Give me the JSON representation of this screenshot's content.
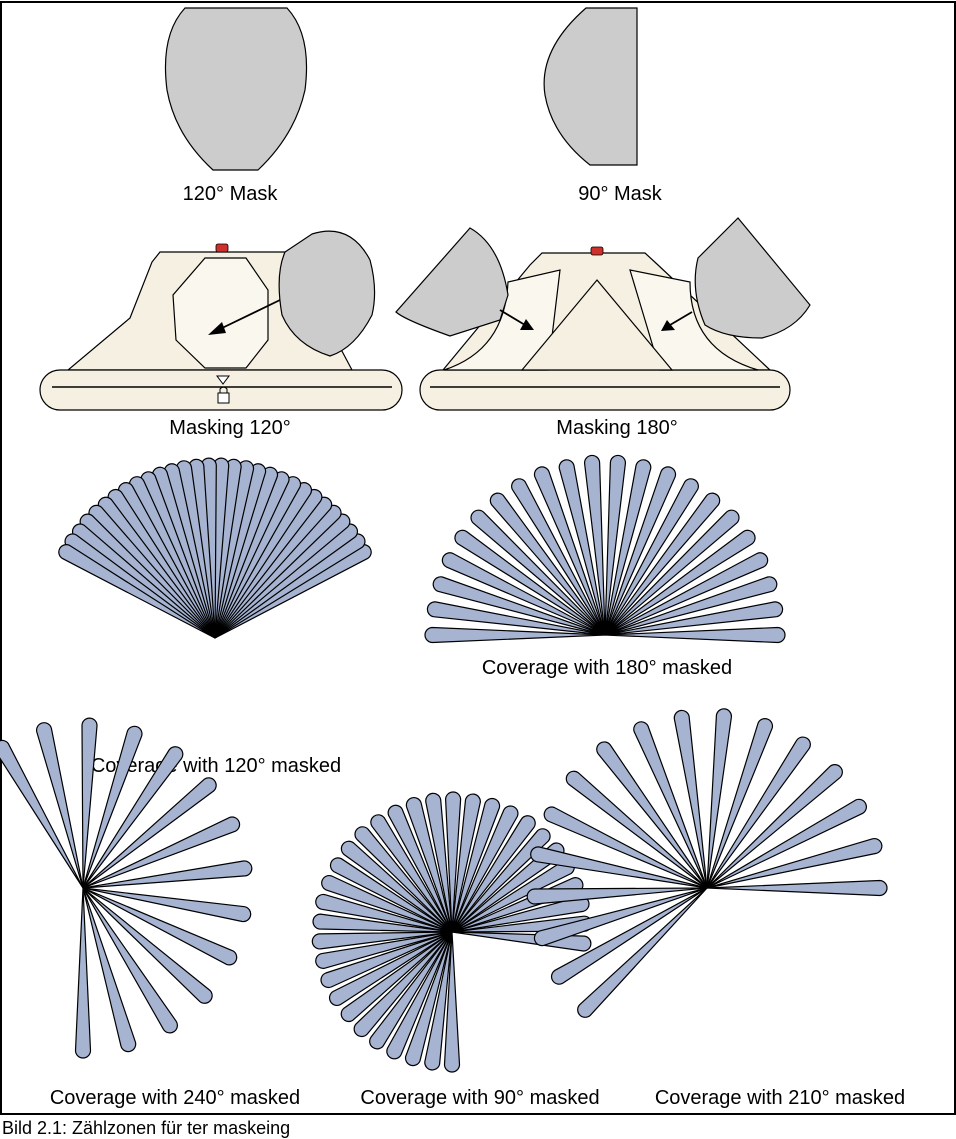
{
  "colors": {
    "mask_fill": "#cccccc",
    "device_fill": "#f5f0e1",
    "device_inner": "#faf7ee",
    "ray_fill": "#a6b4d2",
    "indicator_led": "#d0302c",
    "frame": "#000000"
  },
  "labels": {
    "mask_120": "120° Mask",
    "mask_90": "90° Mask",
    "masking_120": "Masking 120°",
    "masking_180": "Masking 180°",
    "coverage_180": "Coverage with 180° masked",
    "coverage_120": "Coverage with 120° masked",
    "coverage_240": "Coverage with 240° masked",
    "coverage_90": "Coverage with 90° masked",
    "coverage_210": "Coverage with 210° masked"
  },
  "caption": "Bild 2.1: Zählzonen für ter maskeing",
  "coverage_fans": [
    {
      "id": "coverage-120",
      "masked_deg": 120,
      "beam_count": 30
    },
    {
      "id": "coverage-180",
      "masked_deg": 180,
      "beam_count": 22
    },
    {
      "id": "coverage-240",
      "masked_deg": 240,
      "beam_count": 14
    },
    {
      "id": "coverage-90",
      "masked_deg": 90,
      "beam_count": 33
    },
    {
      "id": "coverage-210",
      "masked_deg": 210,
      "beam_count": 17
    }
  ]
}
